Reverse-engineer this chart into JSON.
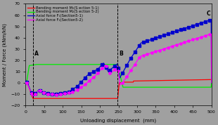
{
  "title": "",
  "xlabel": "Unloading displacement  (mm)",
  "ylabel": "Moment / Force (kNm/kN)",
  "xlim": [
    0,
    500
  ],
  "ylim": [
    -20,
    70
  ],
  "yticks": [
    -20,
    -10,
    0,
    10,
    20,
    30,
    40,
    50,
    60,
    70
  ],
  "xticks": [
    0,
    50,
    100,
    150,
    200,
    250,
    300,
    350,
    400,
    450,
    500
  ],
  "bg_color": "#a0a0a0",
  "vline_A": 20,
  "vline_B": 248,
  "label_A": "A",
  "label_B": "B",
  "label_C": "C",
  "legend": [
    {
      "label": "Bending moment M₁(S ection 5-1)",
      "color": "#ff0000",
      "lw": 0.9
    },
    {
      "label": "Bending moment M₂(S ection 5-2)",
      "color": "#00ee00",
      "lw": 0.9
    },
    {
      "label": "Axial force F₁(Section5-1)",
      "color": "#0000cc",
      "lw": 0.9,
      "marker": "s"
    },
    {
      "label": "Axial force F₂(Section5-2)",
      "color": "#ff00ff",
      "lw": 0.9,
      "marker": "*"
    }
  ]
}
